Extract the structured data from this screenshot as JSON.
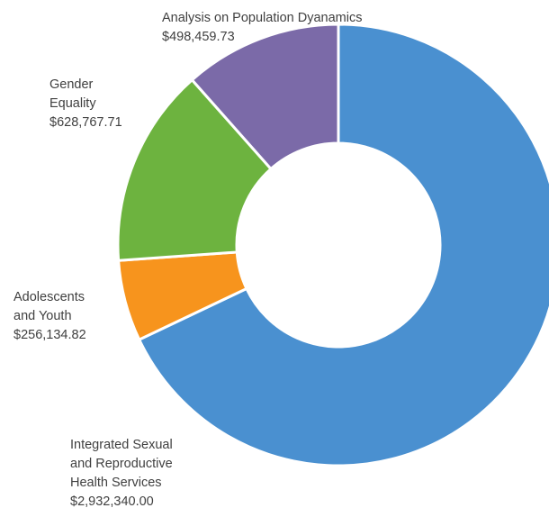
{
  "chart_data": {
    "type": "pie",
    "donut": true,
    "slices": [
      {
        "label_lines": [
          "Integrated Sexual",
          "and Reproductive",
          "Health Services"
        ],
        "value_text": "$2,932,340.00",
        "value": 2932340.0,
        "color": "#4a90d0"
      },
      {
        "label_lines": [
          "Adolescents",
          "and Youth"
        ],
        "value_text": "$256,134.82",
        "value": 256134.82,
        "color": "#f7941d"
      },
      {
        "label_lines": [
          "Gender",
          "Equality"
        ],
        "value_text": "$628,767.71",
        "value": 628767.71,
        "color": "#6db33f"
      },
      {
        "label_lines": [
          "Analysis on Population Dyanamics"
        ],
        "value_text": "$498,459.73",
        "value": 498459.73,
        "color": "#7b6aa8"
      }
    ]
  }
}
